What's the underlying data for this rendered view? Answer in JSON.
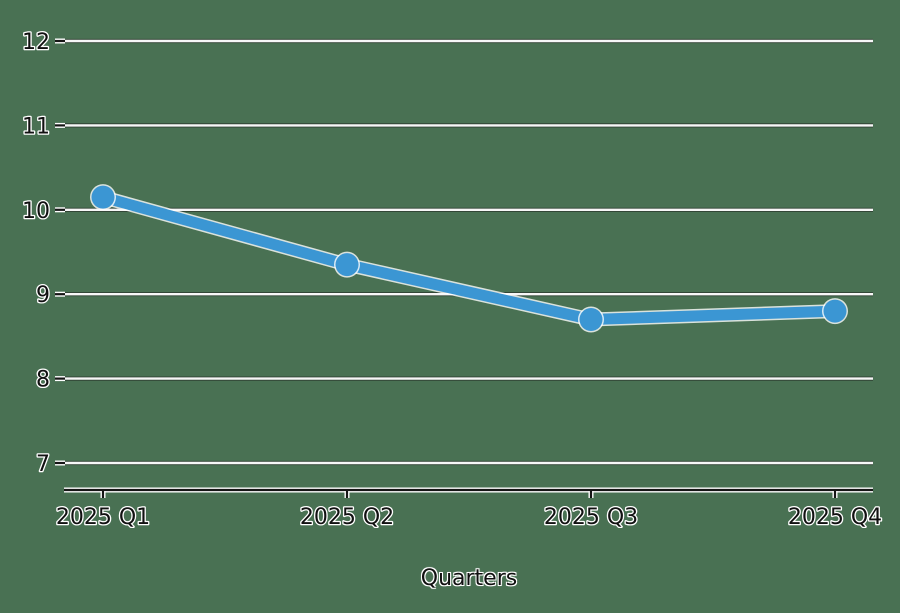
{
  "chart_data": {
    "type": "line",
    "title": "",
    "xlabel": "Quarters",
    "ylabel": "",
    "categories": [
      "2025 Q1",
      "2025 Q2",
      "2025 Q3",
      "2025 Q4"
    ],
    "values": [
      10.15,
      9.35,
      8.7,
      8.8
    ],
    "yticks": [
      7,
      8,
      9,
      10,
      11,
      12
    ],
    "ylim": [
      6.68,
      12.32
    ],
    "grid": true,
    "legend": false,
    "marker": "circle",
    "colors": {
      "background": "#497153",
      "line": "#3b96d3",
      "grid": "#f7f7f7",
      "axis": "#151515",
      "text": "#111111",
      "halo": "#ffffff"
    }
  }
}
